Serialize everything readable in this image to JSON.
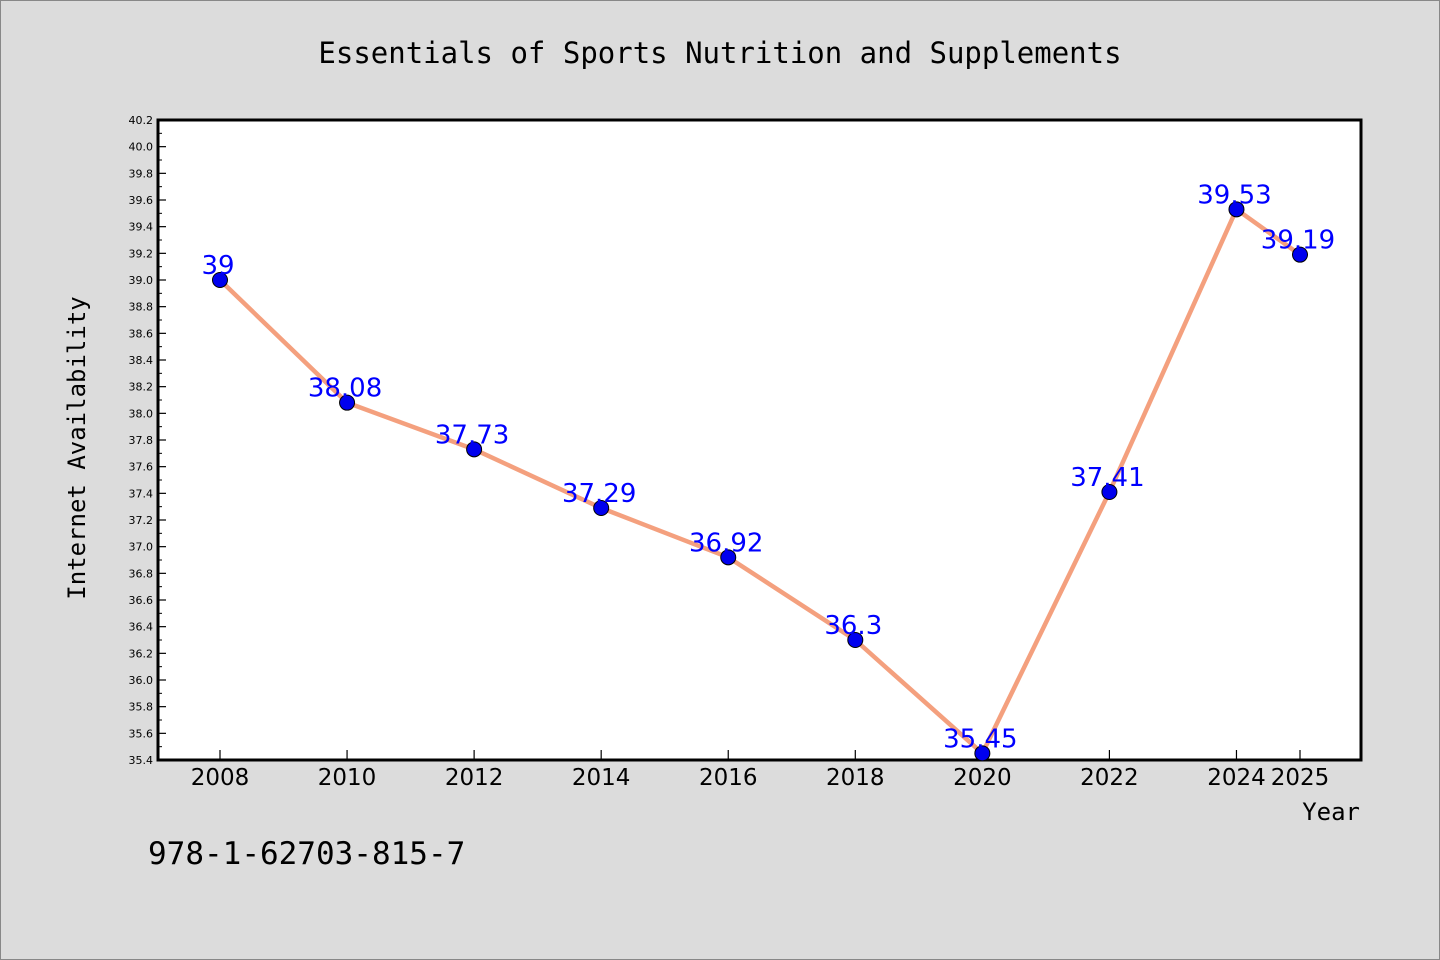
{
  "chart_data": {
    "type": "line",
    "title": "Essentials of Sports Nutrition and Supplements",
    "xlabel": "Year",
    "ylabel": "Internet Availability",
    "x": [
      "2008",
      "2010",
      "2012",
      "2014",
      "2016",
      "2018",
      "2020",
      "2022",
      "2024",
      "2025"
    ],
    "series": [
      {
        "values": [
          39,
          38.08,
          37.73,
          37.29,
          36.92,
          36.3,
          35.45,
          37.41,
          39.53,
          39.19
        ],
        "data_labels": [
          "39",
          "38.08",
          "37.73",
          "37.29",
          "36.92",
          "36.3",
          "35.45",
          "37.41",
          "39.53",
          "39.19"
        ]
      }
    ],
    "ylim": [
      35.4,
      40.2
    ],
    "yticks": [
      "35.4",
      "35.6",
      "35.8",
      "36.0",
      "36.2",
      "36.4",
      "36.6",
      "36.8",
      "37.0",
      "37.2",
      "37.4",
      "37.6",
      "37.8",
      "38.0",
      "38.2",
      "38.4",
      "38.6",
      "38.8",
      "39.0",
      "39.2",
      "39.4",
      "39.6",
      "39.8",
      "40.0",
      "40.2"
    ],
    "grid": false,
    "line_color": "#f4a07e",
    "marker_color": "#0000ee",
    "label_color": "#0000ff"
  },
  "footer_text": "978-1-62703-815-7"
}
